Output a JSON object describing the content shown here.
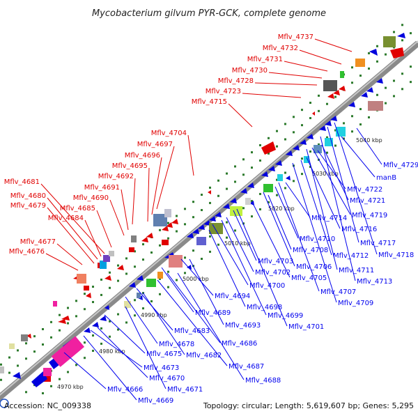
{
  "title": "Mycobacterium gilvum PYR-GCK, complete genome",
  "footer": {
    "accession": "Accession: NC_009338",
    "summary": "Topology: circular; Length: 5,619,607 bp; Genes: 5,295"
  },
  "colors": {
    "forward_label": "#e00000",
    "reverse_label": "#0000ee",
    "backbone": "#8a8a8a",
    "tick": "#2c7a2c"
  },
  "kbp_labels": [
    "4970 kbp",
    "4980 kbp",
    "4990 kbp",
    "5000 kbp",
    "5010 kbp",
    "5020 kbp",
    "5030 kbp",
    "5040 kbp"
  ],
  "forward_labels": [
    "Mflv_4737",
    "Mflv_4732",
    "Mflv_4731",
    "Mflv_4730",
    "Mflv_4728",
    "Mflv_4723",
    "Mflv_4715",
    "Mflv_4704",
    "Mflv_4697",
    "Mflv_4696",
    "Mflv_4695",
    "Mflv_4692",
    "Mflv_4691",
    "Mflv_4690",
    "Mflv_4681",
    "Mflv_4680",
    "Mflv_4679",
    "Mflv_4685",
    "Mflv_4684",
    "Mflv_4677",
    "Mflv_4676"
  ],
  "reverse_labels": [
    "Mflv_4729",
    "manB",
    "Mflv_4722",
    "Mflv_4721",
    "Mflv_4714",
    "Mflv_4719",
    "Mflv_4716",
    "Mflv_4710",
    "Mflv_4717",
    "Mflv_4708",
    "Mflv_4718",
    "Mflv_4712",
    "Mflv_4703",
    "Mflv_4706",
    "Mflv_4711",
    "Mflv_4702",
    "Mflv_4705",
    "Mflv_4713",
    "Mflv_4700",
    "Mflv_4707",
    "Mflv_4694",
    "Mflv_4698",
    "Mflv_4709",
    "Mflv_4699",
    "Mflv_4689",
    "Mflv_4701",
    "Mflv_4693",
    "Mflv_4683",
    "Mflv_4686",
    "Mflv_4678",
    "Mflv_4682",
    "Mflv_4675",
    "Mflv_4687",
    "Mflv_4673",
    "Mflv_4688",
    "Mflv_4670",
    "Mflv_4671",
    "Mflv_4666",
    "Mflv_4669"
  ]
}
